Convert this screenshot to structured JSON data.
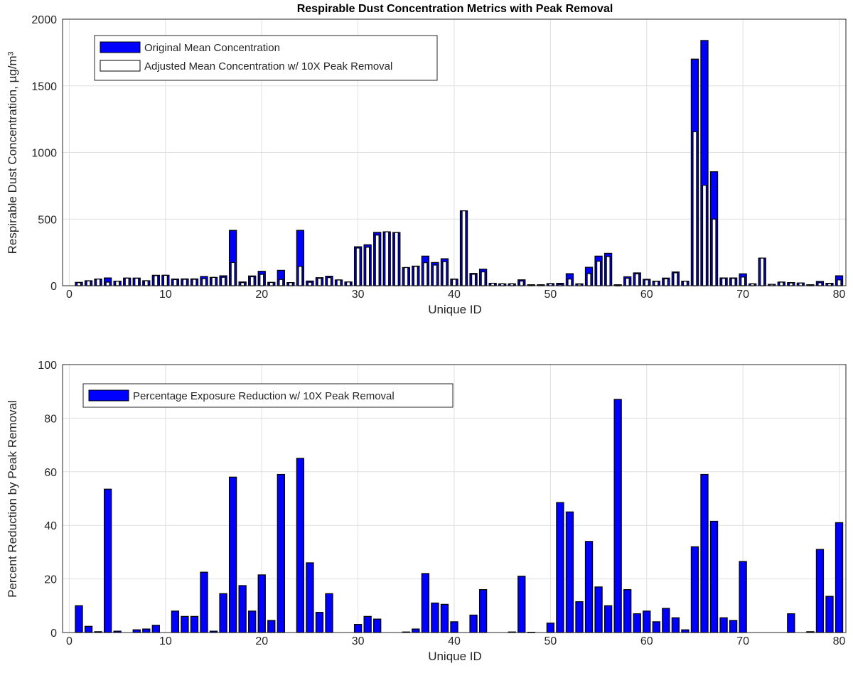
{
  "chart_data": [
    {
      "type": "bar",
      "title": "Respirable Dust Concentration Metrics with Peak Removal",
      "xlabel": "Unique ID",
      "ylabel": "Respirable Dust Concentration, µg/m³",
      "xlim": [
        -0.7,
        80.7
      ],
      "ylim": [
        0,
        2000
      ],
      "xticks": [
        0,
        10,
        20,
        30,
        40,
        50,
        60,
        70,
        80
      ],
      "yticks": [
        0,
        500,
        1000,
        1500,
        2000
      ],
      "grid": true,
      "legend_position": "top-left",
      "x": [
        1,
        2,
        3,
        4,
        5,
        6,
        7,
        8,
        9,
        10,
        11,
        12,
        13,
        14,
        15,
        16,
        17,
        18,
        19,
        20,
        21,
        22,
        23,
        24,
        25,
        26,
        27,
        28,
        29,
        30,
        31,
        32,
        33,
        34,
        35,
        36,
        37,
        38,
        39,
        40,
        41,
        42,
        43,
        44,
        45,
        46,
        47,
        48,
        49,
        50,
        51,
        52,
        53,
        54,
        55,
        56,
        57,
        58,
        59,
        60,
        61,
        62,
        63,
        64,
        65,
        66,
        67,
        68,
        69,
        70,
        71,
        72,
        73,
        74,
        75,
        76,
        77,
        78,
        79,
        80
      ],
      "series": [
        {
          "name": "Original Mean Concentration",
          "color": "#0000ff",
          "values": [
            25,
            37,
            50,
            58,
            34,
            57,
            57,
            37,
            78,
            78,
            50,
            51,
            51,
            69,
            62,
            74,
            415,
            28,
            73,
            108,
            25,
            115,
            23,
            415,
            35,
            60,
            71,
            43,
            28,
            292,
            307,
            400,
            404,
            399,
            136,
            147,
            222,
            174,
            202,
            50,
            562,
            92,
            124,
            18,
            14,
            14,
            44,
            7,
            7,
            16,
            18,
            90,
            14,
            138,
            222,
            243,
            7,
            67,
            96,
            48,
            34,
            57,
            103,
            34,
            1700,
            1840,
            855,
            58,
            58,
            89,
            14,
            207,
            10,
            27,
            23,
            20,
            7,
            32,
            18,
            74
          ]
        },
        {
          "name": "Adjusted Mean Concentration w/ 10X Peak Removal",
          "color": "#ffffff",
          "values": [
            23,
            36,
            50,
            27,
            34,
            57,
            56,
            37,
            76,
            78,
            46,
            48,
            48,
            53,
            62,
            63,
            174,
            23,
            67,
            85,
            24,
            47,
            23,
            145,
            26,
            56,
            61,
            43,
            28,
            283,
            289,
            380,
            404,
            399,
            136,
            145,
            173,
            155,
            181,
            48,
            562,
            86,
            104,
            18,
            14,
            14,
            35,
            7,
            7,
            15,
            9,
            50,
            12,
            91,
            184,
            219,
            1,
            56,
            89,
            44,
            33,
            52,
            97,
            34,
            1156,
            754,
            500,
            55,
            55,
            65,
            14,
            207,
            10,
            27,
            21,
            20,
            7,
            22,
            16,
            44
          ]
        }
      ]
    },
    {
      "type": "bar",
      "title": "",
      "xlabel": "Unique ID",
      "ylabel": "Percent Reduction by Peak Removal",
      "xlim": [
        -0.7,
        80.7
      ],
      "ylim": [
        0,
        100
      ],
      "xticks": [
        0,
        10,
        20,
        30,
        40,
        50,
        60,
        70,
        80
      ],
      "yticks": [
        0,
        20,
        40,
        60,
        80,
        100
      ],
      "grid": true,
      "legend_position": "top-left",
      "x": [
        1,
        2,
        3,
        4,
        5,
        6,
        7,
        8,
        9,
        10,
        11,
        12,
        13,
        14,
        15,
        16,
        17,
        18,
        19,
        20,
        21,
        22,
        23,
        24,
        25,
        26,
        27,
        28,
        29,
        30,
        31,
        32,
        33,
        34,
        35,
        36,
        37,
        38,
        39,
        40,
        41,
        42,
        43,
        44,
        45,
        46,
        47,
        48,
        49,
        50,
        51,
        52,
        53,
        54,
        55,
        56,
        57,
        58,
        59,
        60,
        61,
        62,
        63,
        64,
        65,
        66,
        67,
        68,
        69,
        70,
        71,
        72,
        73,
        74,
        75,
        76,
        77,
        78,
        79,
        80
      ],
      "series": [
        {
          "name": "Percentage Exposure Reduction w/ 10X Peak Removal",
          "color": "#0000ff",
          "values": [
            10,
            2.3,
            0.3,
            53.5,
            0.5,
            0,
            1,
            1.3,
            2.7,
            0,
            8,
            6,
            6,
            22.5,
            0.5,
            14.5,
            58,
            17.5,
            8,
            21.5,
            4.5,
            59,
            0,
            65,
            26,
            7.5,
            14.5,
            0,
            0,
            3,
            6,
            5,
            0,
            0,
            0.2,
            1.3,
            22,
            11,
            10.5,
            4,
            0,
            6.5,
            16,
            0,
            0,
            0.2,
            21,
            0.1,
            0,
            3.5,
            48.5,
            45,
            11.5,
            34,
            17,
            10,
            87,
            16,
            7,
            8,
            4,
            9,
            5.5,
            1,
            32,
            59,
            41.5,
            5.5,
            4.5,
            26.5,
            0,
            0,
            0,
            0,
            7,
            0,
            0.3,
            31,
            13.5,
            41
          ]
        }
      ]
    }
  ]
}
